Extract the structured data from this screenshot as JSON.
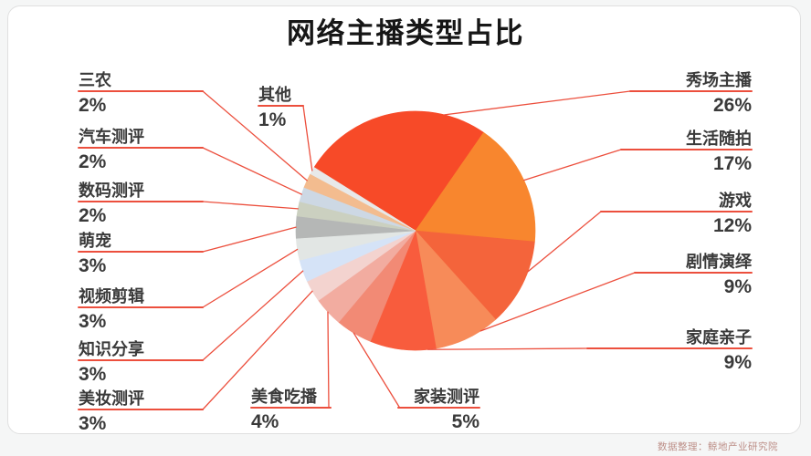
{
  "title": "网络主播类型占比",
  "source": "数据整理：鲸地产业研究院",
  "chart_data": {
    "type": "pie",
    "title": "网络主播类型占比",
    "unit": "%",
    "legend_position": "callout-labels-around-pie",
    "leader_line_color": "#ec4f3d",
    "title_color": "#161616",
    "label_color": "#3a3a3a",
    "slices": [
      {
        "label": "秀场主播",
        "value": 26,
        "pct": "26%",
        "color": "#f74a28"
      },
      {
        "label": "生活随拍",
        "value": 17,
        "pct": "17%",
        "color": "#f8862e"
      },
      {
        "label": "游戏",
        "value": 12,
        "pct": "12%",
        "color": "#f4643b"
      },
      {
        "label": "剧情演绎",
        "value": 9,
        "pct": "9%",
        "color": "#f78b59"
      },
      {
        "label": "家庭亲子",
        "value": 9,
        "pct": "9%",
        "color": "#f85c3d"
      },
      {
        "label": "家装测评",
        "value": 5,
        "pct": "5%",
        "color": "#f28a75"
      },
      {
        "label": "美食吃播",
        "value": 4,
        "pct": "4%",
        "color": "#f2aca0"
      },
      {
        "label": "美妆测评",
        "value": 3,
        "pct": "3%",
        "color": "#f3d3cf"
      },
      {
        "label": "知识分享",
        "value": 3,
        "pct": "3%",
        "color": "#d5e3f7"
      },
      {
        "label": "视频剪辑",
        "value": 3,
        "pct": "3%",
        "color": "#e2e6e4"
      },
      {
        "label": "萌宠",
        "value": 3,
        "pct": "3%",
        "color": "#b5b7b6"
      },
      {
        "label": "数码测评",
        "value": 2,
        "pct": "2%",
        "color": "#cbd0c0"
      },
      {
        "label": "汽车测评",
        "value": 2,
        "pct": "2%",
        "color": "#cdd8e4"
      },
      {
        "label": "三农",
        "value": 2,
        "pct": "2%",
        "color": "#f3bc8f"
      },
      {
        "label": "其他",
        "value": 1,
        "pct": "1%",
        "color": "#e8e9e9"
      }
    ]
  }
}
